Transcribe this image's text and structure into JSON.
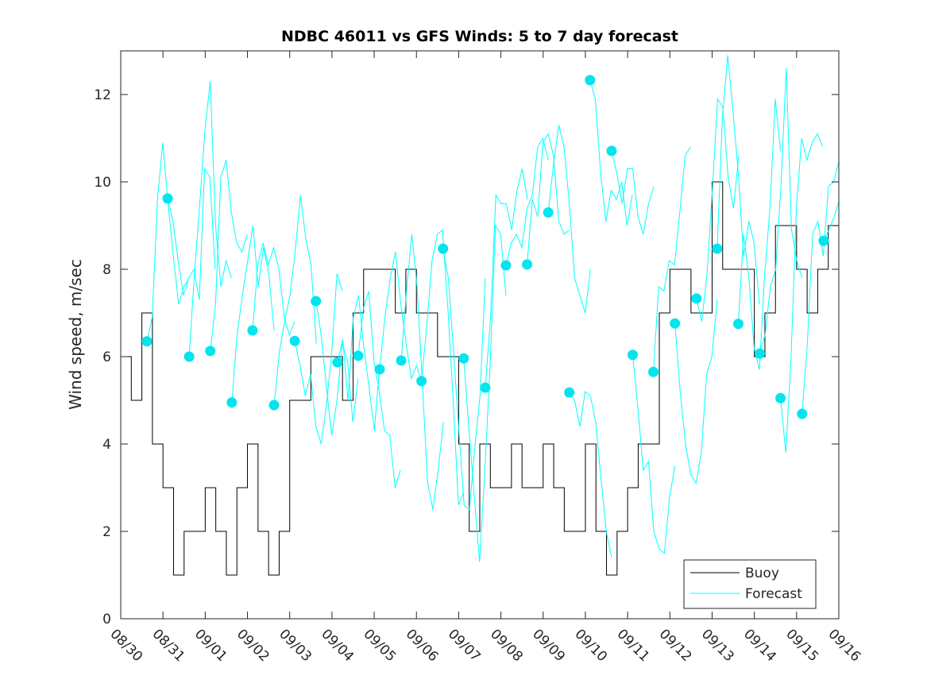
{
  "chart_data": {
    "type": "line",
    "title": "NDBC 46011 vs GFS Winds: 5 to 7 day forecast",
    "xlabel": "",
    "ylabel": "Wind speed, m/sec",
    "xlim_days": [
      0,
      17
    ],
    "ylim": [
      0,
      13
    ],
    "x_tick_labels": [
      "08/30",
      "08/31",
      "09/01",
      "09/02",
      "09/03",
      "09/04",
      "09/05",
      "09/06",
      "09/07",
      "09/08",
      "09/09",
      "09/10",
      "09/11",
      "09/12",
      "09/13",
      "09/14",
      "09/15",
      "09/16"
    ],
    "y_ticks": [
      0,
      2,
      4,
      6,
      8,
      10,
      12
    ],
    "grid": false,
    "legend": {
      "placement": "bottom-right",
      "entries": [
        "Buoy",
        "Forecast"
      ]
    },
    "colors": {
      "buoy": "#000000",
      "forecast": "#00ffff",
      "marker": "#00e5ee"
    },
    "buoy": {
      "name": "Buoy",
      "x_start_day": 0,
      "step_days": 0.25,
      "values": [
        6,
        5,
        7,
        4,
        3,
        1,
        2,
        2,
        3,
        2,
        1,
        3,
        4,
        2,
        1,
        2,
        5,
        5,
        6,
        6,
        6,
        5,
        7,
        8,
        8,
        8,
        7,
        8,
        7,
        7,
        6,
        6,
        4,
        2,
        4,
        3,
        3,
        4,
        3,
        3,
        4,
        3,
        2,
        2,
        4,
        2,
        1,
        2,
        3,
        4,
        4,
        7,
        8,
        8,
        7,
        7,
        10,
        8,
        8,
        8,
        6,
        7,
        9,
        9,
        8,
        7,
        8,
        9,
        8
      ]
    },
    "forecast": {
      "name": "Forecast",
      "step_days": 0.125,
      "traces": [
        {
          "start": 0.62,
          "values": [
            6.35,
            6.9,
            9.6,
            10.9,
            9.5,
            8.3,
            7.2,
            7.6,
            7.8
          ]
        },
        {
          "start": 1.11,
          "values": [
            9.62,
            9.1,
            8.2,
            7.4,
            7.8,
            8.0,
            7.3,
            10.3,
            10.1,
            8.0
          ]
        },
        {
          "start": 1.62,
          "values": [
            6.0,
            7.9,
            9.5,
            11.2,
            12.3,
            9.0,
            7.6,
            8.2,
            7.8
          ]
        },
        {
          "start": 2.12,
          "values": [
            6.13,
            7.2,
            10.1,
            10.5,
            9.3,
            8.6,
            8.4,
            8.8
          ]
        },
        {
          "start": 2.63,
          "values": [
            4.95,
            6.5,
            7.4,
            8.2,
            9.0,
            7.6,
            8.5,
            7.9,
            6.6
          ]
        },
        {
          "start": 3.12,
          "values": [
            6.6,
            8.1,
            8.6,
            8.1,
            8.5,
            8.0,
            6.9,
            6.5,
            6.8
          ]
        },
        {
          "start": 3.63,
          "values": [
            4.89,
            6.1,
            6.8,
            7.4,
            8.4,
            9.7,
            8.7,
            8.1,
            6.3
          ]
        },
        {
          "start": 4.12,
          "values": [
            6.36,
            5.8,
            5.1,
            5.6,
            4.4,
            4.0,
            4.9,
            6.1,
            7.9,
            7.5
          ]
        },
        {
          "start": 4.62,
          "values": [
            7.27,
            6.5,
            5.3,
            4.2,
            5.0,
            6.3,
            5.9,
            4.5,
            5.5
          ]
        },
        {
          "start": 5.13,
          "values": [
            5.87,
            6.4,
            5.0,
            6.9,
            7.4,
            6.2,
            5.3,
            4.3,
            5.8
          ]
        },
        {
          "start": 5.62,
          "values": [
            6.02,
            7.1,
            7.5,
            5.9,
            5.2,
            4.3,
            4.2,
            3.0,
            3.4
          ]
        },
        {
          "start": 6.13,
          "values": [
            5.71,
            6.9,
            7.8,
            8.4,
            7.2,
            6.3,
            5.5,
            5.8,
            5.4
          ]
        },
        {
          "start": 6.64,
          "values": [
            5.91,
            7.5,
            8.8,
            7.6,
            5.4,
            3.1,
            2.5,
            3.4,
            4.5
          ]
        },
        {
          "start": 7.12,
          "values": [
            5.44,
            6.7,
            8.2,
            8.8,
            8.9,
            7.1,
            5.0,
            2.6,
            2.9
          ]
        },
        {
          "start": 7.63,
          "values": [
            8.47,
            7.8,
            6.1,
            4.3,
            2.6,
            2.5,
            3.9,
            5.1,
            7.8
          ]
        },
        {
          "start": 8.12,
          "values": [
            5.96,
            4.3,
            2.8,
            1.3,
            3.4,
            5.8,
            9.0,
            8.8,
            7.4
          ]
        },
        {
          "start": 8.63,
          "values": [
            5.29,
            6.9,
            9.7,
            9.5,
            9.5,
            8.9,
            9.8,
            10.3,
            9.6
          ]
        },
        {
          "start": 9.12,
          "values": [
            8.09,
            8.6,
            8.8,
            8.5,
            9.4,
            9.7,
            10.8,
            11.0,
            10.5
          ]
        },
        {
          "start": 9.62,
          "values": [
            8.11,
            9.6,
            9.2,
            10.9,
            11.1,
            10.6,
            9.1,
            8.8,
            8.9
          ]
        },
        {
          "start": 10.12,
          "values": [
            9.3,
            10.4,
            11.3,
            10.8,
            9.5,
            7.8,
            7.4,
            7.0,
            8.0
          ]
        },
        {
          "start": 10.62,
          "values": [
            5.18,
            5.0,
            4.4,
            5.2,
            5.1,
            4.5,
            3.2,
            2.0,
            1.4
          ]
        },
        {
          "start": 11.11,
          "values": [
            12.33,
            11.9,
            10.2,
            9.1,
            9.8,
            9.6,
            10.0,
            9.0,
            9.7
          ]
        },
        {
          "start": 11.62,
          "values": [
            10.71,
            10.2,
            9.5,
            10.3,
            10.3,
            9.2,
            8.8,
            9.5,
            9.9
          ]
        },
        {
          "start": 12.12,
          "values": [
            6.04,
            4.8,
            3.4,
            3.6,
            2.0,
            1.6,
            1.5,
            2.8,
            3.5
          ]
        },
        {
          "start": 12.61,
          "values": [
            5.65,
            7.6,
            7.5,
            8.2,
            8.1,
            9.3,
            10.6,
            10.8
          ]
        },
        {
          "start": 13.12,
          "values": [
            6.76,
            5.2,
            4.0,
            3.3,
            3.1,
            3.8,
            5.6,
            6.0,
            7.3
          ]
        },
        {
          "start": 13.63,
          "values": [
            7.33,
            6.8,
            7.9,
            9.8,
            11.9,
            11.7,
            10.1,
            9.4,
            10.6
          ]
        },
        {
          "start": 14.12,
          "values": [
            8.47,
            11.5,
            12.9,
            11.6,
            10.2,
            8.3,
            9.1,
            8.6,
            7.2
          ]
        },
        {
          "start": 14.62,
          "values": [
            6.75,
            8.8,
            7.8,
            6.2,
            5.7,
            7.9,
            9.4,
            11.9,
            10.7
          ]
        },
        {
          "start": 15.13,
          "values": [
            6.07,
            6.5,
            7.6,
            8.0,
            9.9,
            12.6,
            8.9,
            8.2,
            7.8
          ]
        },
        {
          "start": 15.62,
          "values": [
            5.05,
            3.8,
            6.0,
            9.4,
            11.0,
            10.5,
            10.9,
            11.1,
            10.8
          ]
        },
        {
          "start": 16.13,
          "values": [
            4.69,
            6.3,
            8.8,
            9.1,
            8.3,
            9.9,
            10.0,
            10.5,
            10.8
          ]
        },
        {
          "start": 16.64,
          "values": [
            8.65,
            8.9,
            9.2,
            9.6,
            9.9,
            10.0
          ]
        }
      ]
    }
  }
}
